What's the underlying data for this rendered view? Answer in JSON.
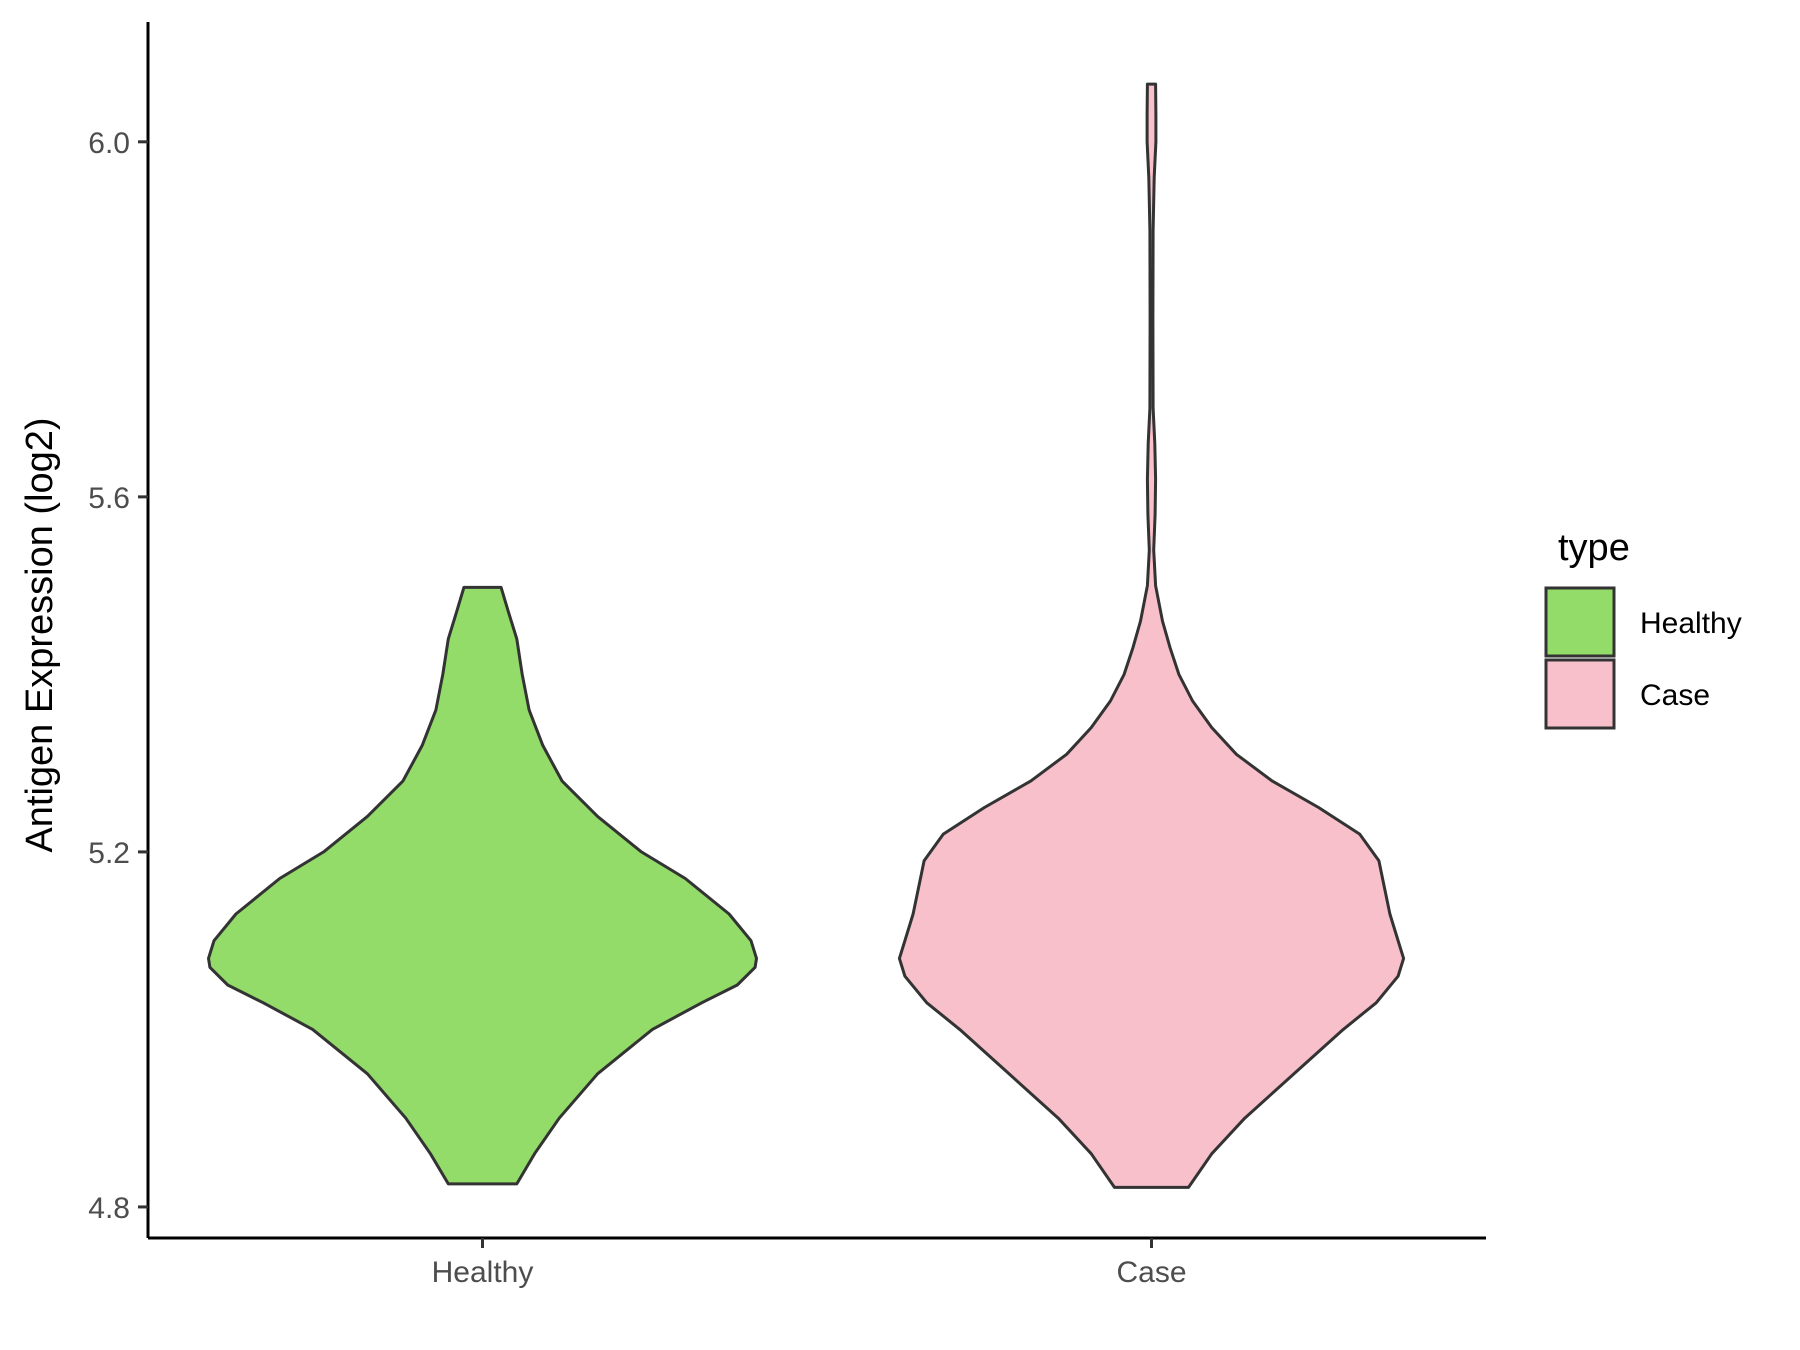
{
  "chart_data": {
    "type": "violin",
    "title": "",
    "xlabel": "",
    "ylabel": "Antigen Expression (log2)",
    "ylim": [
      4.765,
      6.135
    ],
    "yticks": [
      4.8,
      5.2,
      5.6,
      6.0
    ],
    "ytick_labels": [
      "4.8",
      "5.2",
      "5.6",
      "6.0"
    ],
    "categories": [
      "Healthy",
      "Case"
    ],
    "grid": false,
    "legend": {
      "title": "type",
      "position": "right",
      "entries": [
        {
          "label": "Healthy",
          "color": "#93dc6a"
        },
        {
          "label": "Case",
          "color": "#f7c0cb"
        }
      ]
    },
    "series": [
      {
        "category": "Healthy",
        "color": "#93dc6a",
        "y_min": 4.826,
        "y_max": 5.498,
        "density": [
          [
            4.826,
            0.125
          ],
          [
            4.86,
            0.19
          ],
          [
            4.9,
            0.28
          ],
          [
            4.95,
            0.42
          ],
          [
            5.0,
            0.62
          ],
          [
            5.03,
            0.8
          ],
          [
            5.05,
            0.93
          ],
          [
            5.07,
            0.995
          ],
          [
            5.08,
            1.0
          ],
          [
            5.1,
            0.98
          ],
          [
            5.13,
            0.9
          ],
          [
            5.17,
            0.74
          ],
          [
            5.2,
            0.58
          ],
          [
            5.24,
            0.42
          ],
          [
            5.28,
            0.29
          ],
          [
            5.32,
            0.22
          ],
          [
            5.36,
            0.17
          ],
          [
            5.4,
            0.145
          ],
          [
            5.44,
            0.125
          ],
          [
            5.47,
            0.095
          ],
          [
            5.498,
            0.068
          ]
        ]
      },
      {
        "category": "Case",
        "color": "#f7c0cb",
        "y_min": 4.822,
        "y_max": 6.065,
        "density": [
          [
            4.822,
            0.135
          ],
          [
            4.86,
            0.22
          ],
          [
            4.9,
            0.34
          ],
          [
            4.95,
            0.52
          ],
          [
            5.0,
            0.7
          ],
          [
            5.03,
            0.82
          ],
          [
            5.06,
            0.9
          ],
          [
            5.08,
            0.92
          ],
          [
            5.1,
            0.9
          ],
          [
            5.13,
            0.87
          ],
          [
            5.16,
            0.85
          ],
          [
            5.19,
            0.83
          ],
          [
            5.22,
            0.76
          ],
          [
            5.25,
            0.61
          ],
          [
            5.28,
            0.44
          ],
          [
            5.31,
            0.31
          ],
          [
            5.34,
            0.22
          ],
          [
            5.37,
            0.15
          ],
          [
            5.4,
            0.1
          ],
          [
            5.43,
            0.068
          ],
          [
            5.46,
            0.04
          ],
          [
            5.5,
            0.015
          ],
          [
            5.54,
            0.008
          ],
          [
            5.58,
            0.013
          ],
          [
            5.62,
            0.015
          ],
          [
            5.66,
            0.012
          ],
          [
            5.7,
            0.006
          ],
          [
            5.8,
            0.005
          ],
          [
            5.9,
            0.006
          ],
          [
            5.96,
            0.01
          ],
          [
            6.0,
            0.016
          ],
          [
            6.03,
            0.016
          ],
          [
            6.065,
            0.015
          ]
        ]
      }
    ]
  }
}
